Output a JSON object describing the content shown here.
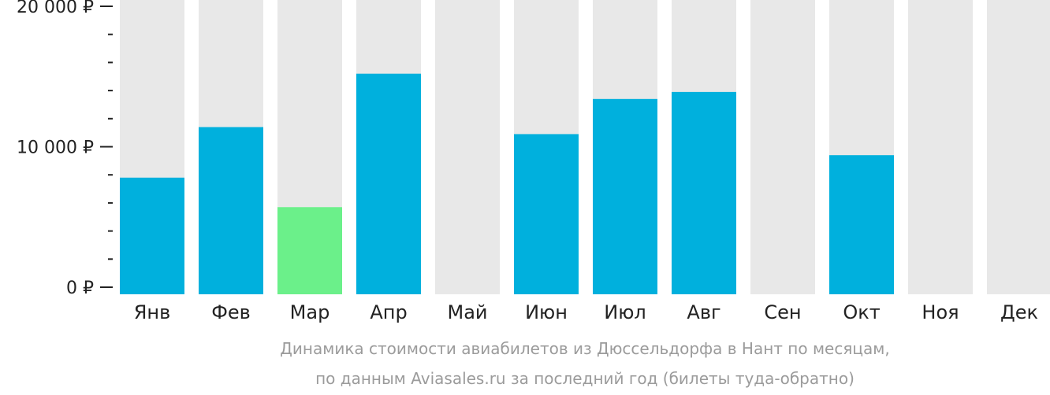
{
  "chart_data": {
    "type": "bar",
    "categories": [
      "Янв",
      "Фев",
      "Мар",
      "Апр",
      "Май",
      "Июн",
      "Июл",
      "Авг",
      "Сен",
      "Окт",
      "Ноя",
      "Дек"
    ],
    "values": [
      7800,
      11400,
      5700,
      15200,
      null,
      10900,
      13400,
      13900,
      null,
      9400,
      null,
      null
    ],
    "highlight_index": 2,
    "ylim": [
      0,
      20000
    ],
    "yticks": [
      {
        "value": 0,
        "label": "0 ₽"
      },
      {
        "value": 10000,
        "label": "10 000 ₽"
      },
      {
        "value": 20000,
        "label": "20 000 ₽"
      }
    ],
    "minor_tick_step": 2000,
    "grid": false,
    "caption_lines": [
      "Динамика стоимости авиабилетов из Дюссельдорфа в Нант по месяцам,",
      "по данным Aviasales.ru за последний год (билеты туда-обратно)"
    ],
    "colors": {
      "bar": "#00b0dd",
      "highlight": "#6bf08a",
      "background_bar": "#e8e8e8",
      "axis": "#222222",
      "caption": "#9b9b9b"
    }
  }
}
